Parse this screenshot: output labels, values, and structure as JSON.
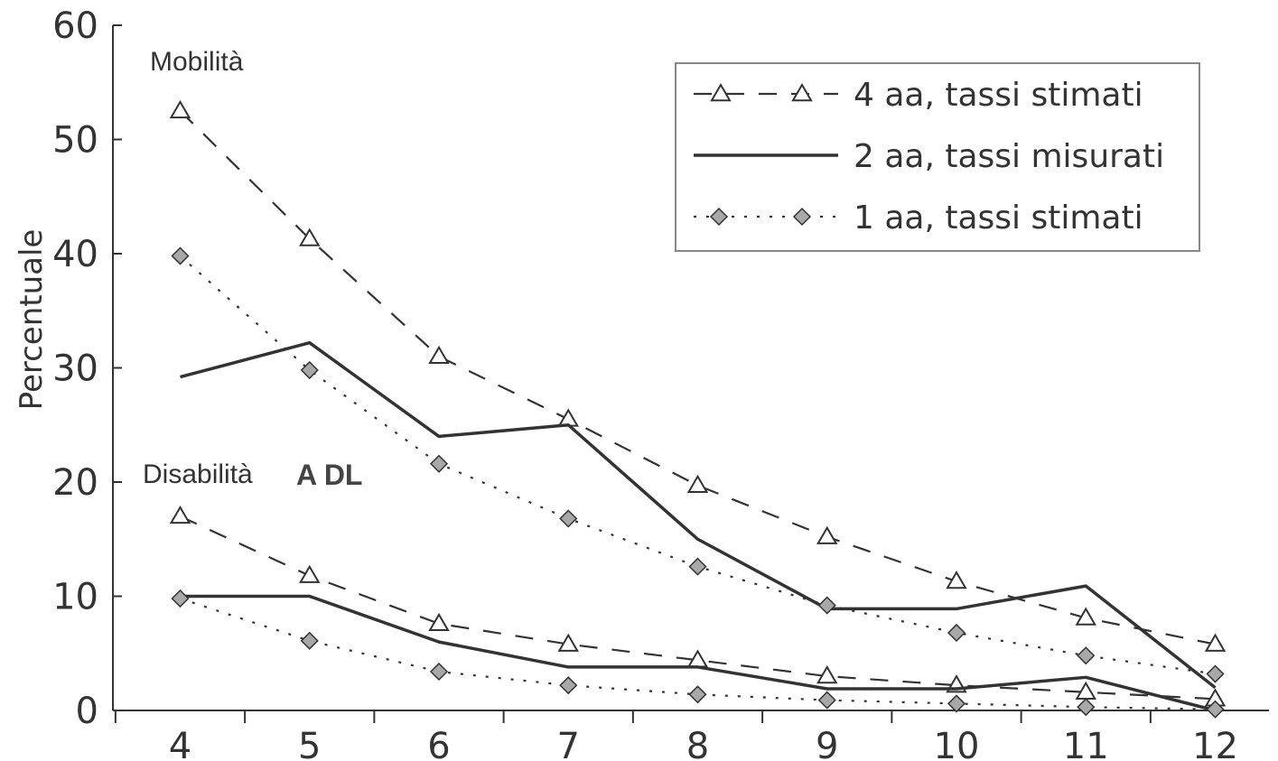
{
  "chart_data": {
    "type": "line",
    "title": "",
    "xlabel": "",
    "ylabel": "Percentuale",
    "x": [
      4,
      5,
      6,
      7,
      8,
      9,
      10,
      11,
      12
    ],
    "xlim": [
      3.48,
      12.52
    ],
    "ylim": [
      0,
      60
    ],
    "yticks": [
      0,
      10,
      20,
      30,
      40,
      50,
      60
    ],
    "grid": false,
    "legend_position": "top-right",
    "legend": [
      {
        "label": "4 aa, tassi stimati",
        "style": "dashed",
        "marker": "triangle"
      },
      {
        "label": "2 aa, tassi misurati",
        "style": "solid",
        "marker": "none"
      },
      {
        "label": "1 aa, tassi stimati",
        "style": "dotted",
        "marker": "diamond"
      }
    ],
    "annotations": {
      "mobilita": "Mobilità",
      "disabilita": "Disabilità",
      "adl": "A DL"
    },
    "groups": [
      {
        "group": "Mobilità",
        "series": [
          {
            "name": "4 aa, tassi stimati",
            "values": [
              52.5,
              41.3,
              31.0,
              25.5,
              19.7,
              15.2,
              11.3,
              8.1,
              5.8
            ]
          },
          {
            "name": "2 aa, tassi misurati",
            "values": [
              29.2,
              32.2,
              24.0,
              25.0,
              15.0,
              8.9,
              8.9,
              10.9,
              2.0
            ]
          },
          {
            "name": "1 aa, tassi stimati",
            "values": [
              39.8,
              29.8,
              21.6,
              16.8,
              12.6,
              9.2,
              6.8,
              4.8,
              3.2
            ]
          }
        ]
      },
      {
        "group": "Disabilità ADL",
        "series": [
          {
            "name": "4 aa, tassi stimati",
            "values": [
              17.0,
              11.8,
              7.6,
              5.8,
              4.4,
              3.0,
              2.2,
              1.6,
              1.0
            ]
          },
          {
            "name": "2 aa, tassi misurati",
            "values": [
              10.0,
              10.0,
              6.0,
              3.8,
              3.8,
              1.9,
              1.9,
              2.9,
              0.0
            ]
          },
          {
            "name": "1 aa, tassi stimati",
            "values": [
              9.8,
              6.1,
              3.4,
              2.2,
              1.4,
              0.9,
              0.6,
              0.3,
              0.1
            ]
          }
        ]
      }
    ],
    "colors": {
      "ink": "#333333",
      "marker_fill": "#a8a8a8",
      "legend_border": "#888888"
    }
  }
}
